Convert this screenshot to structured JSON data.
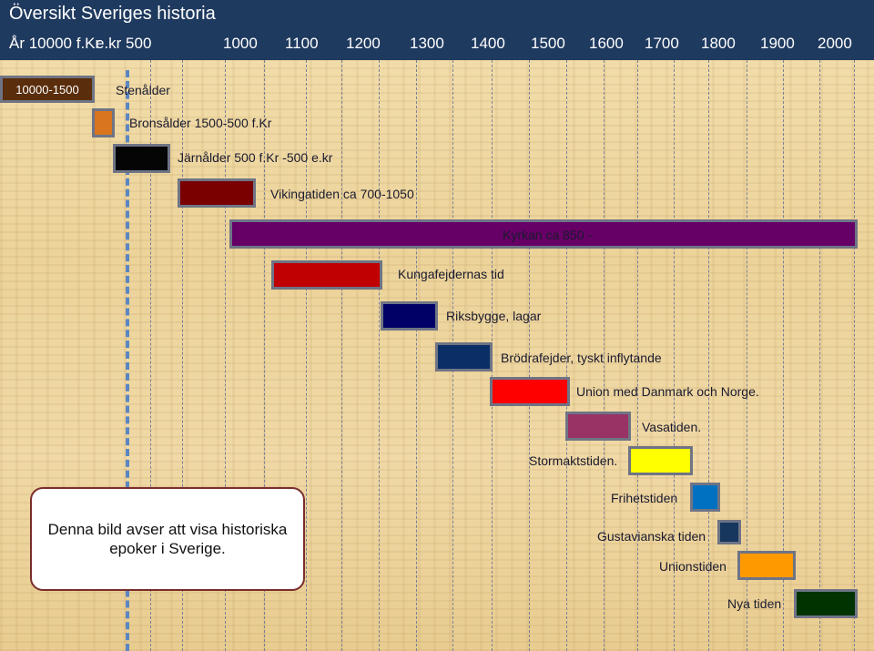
{
  "header": {
    "title": "Översikt Sveriges historia",
    "ticks": [
      "År 10000 f.Kr",
      "e.kr 500",
      "1000",
      "1100",
      "1200",
      "1300",
      "1400",
      "1500",
      "1600",
      "1700",
      "1800",
      "1900",
      "2000"
    ]
  },
  "eras": [
    {
      "id": "stone",
      "bar_text": "10000-1500",
      "label": "Stenålder",
      "color": "#5a2d0c"
    },
    {
      "id": "bronze",
      "label": "Bronsålder  1500-500 f.Kr",
      "color": "#d9741f"
    },
    {
      "id": "iron",
      "label": "Järnålder 500 f.Kr -500 e.kr",
      "color": "#050505"
    },
    {
      "id": "viking",
      "label": "Vikingatiden ca 700-1050",
      "color": "#7a0000"
    },
    {
      "id": "church",
      "label": "Kyrkan ca 850 -",
      "color": "#660066"
    },
    {
      "id": "kings",
      "label": "Kungafejdernas tid",
      "color": "#c00000"
    },
    {
      "id": "realm",
      "label": "Riksbygge, lagar",
      "color": "#000066"
    },
    {
      "id": "brothers",
      "label": "Brödrafejder, tyskt inflytande",
      "color": "#0a2f66"
    },
    {
      "id": "union",
      "label": "Union med Danmark och Norge.",
      "color": "#ff0000"
    },
    {
      "id": "vasa",
      "label": "Vasatiden.",
      "color": "#993366"
    },
    {
      "id": "great",
      "label": "Stormaktstiden.",
      "color": "#ffff00"
    },
    {
      "id": "freedom",
      "label": "Frihetstiden",
      "color": "#0070c0"
    },
    {
      "id": "gustav",
      "label": "Gustavianska tiden",
      "color": "#17375e"
    },
    {
      "id": "unions",
      "label": "Unionstiden",
      "color": "#ff9900"
    },
    {
      "id": "new",
      "label": "Nya tiden",
      "color": "#003300"
    }
  ],
  "note": {
    "text": "Denna bild avser att visa historiska epoker i Sverige."
  }
}
